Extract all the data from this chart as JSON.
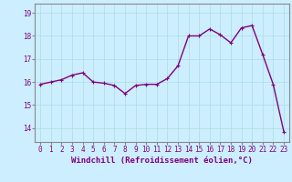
{
  "x": [
    0,
    1,
    2,
    3,
    4,
    5,
    6,
    7,
    8,
    9,
    10,
    11,
    12,
    13,
    14,
    15,
    16,
    17,
    18,
    19,
    20,
    21,
    22,
    23
  ],
  "y": [
    15.9,
    16.0,
    16.1,
    16.3,
    16.4,
    16.0,
    15.95,
    15.85,
    15.5,
    15.85,
    15.9,
    15.9,
    16.15,
    16.7,
    18.0,
    18.0,
    18.3,
    18.05,
    17.7,
    18.35,
    18.45,
    17.2,
    15.9,
    13.85
  ],
  "line_color": "#800080",
  "marker": "+",
  "marker_size": 3,
  "bg_color": "#cceeff",
  "grid_color": "#aadddd",
  "xlabel": "Windchill (Refroidissement éolien,°C)",
  "xlabel_fontsize": 6.5,
  "ylabel_ticks": [
    14,
    15,
    16,
    17,
    18,
    19
  ],
  "ylim": [
    13.4,
    19.4
  ],
  "xlim": [
    -0.5,
    23.5
  ],
  "xticks": [
    0,
    1,
    2,
    3,
    4,
    5,
    6,
    7,
    8,
    9,
    10,
    11,
    12,
    13,
    14,
    15,
    16,
    17,
    18,
    19,
    20,
    21,
    22,
    23
  ],
  "tick_fontsize": 5.5,
  "line_width": 1.0
}
